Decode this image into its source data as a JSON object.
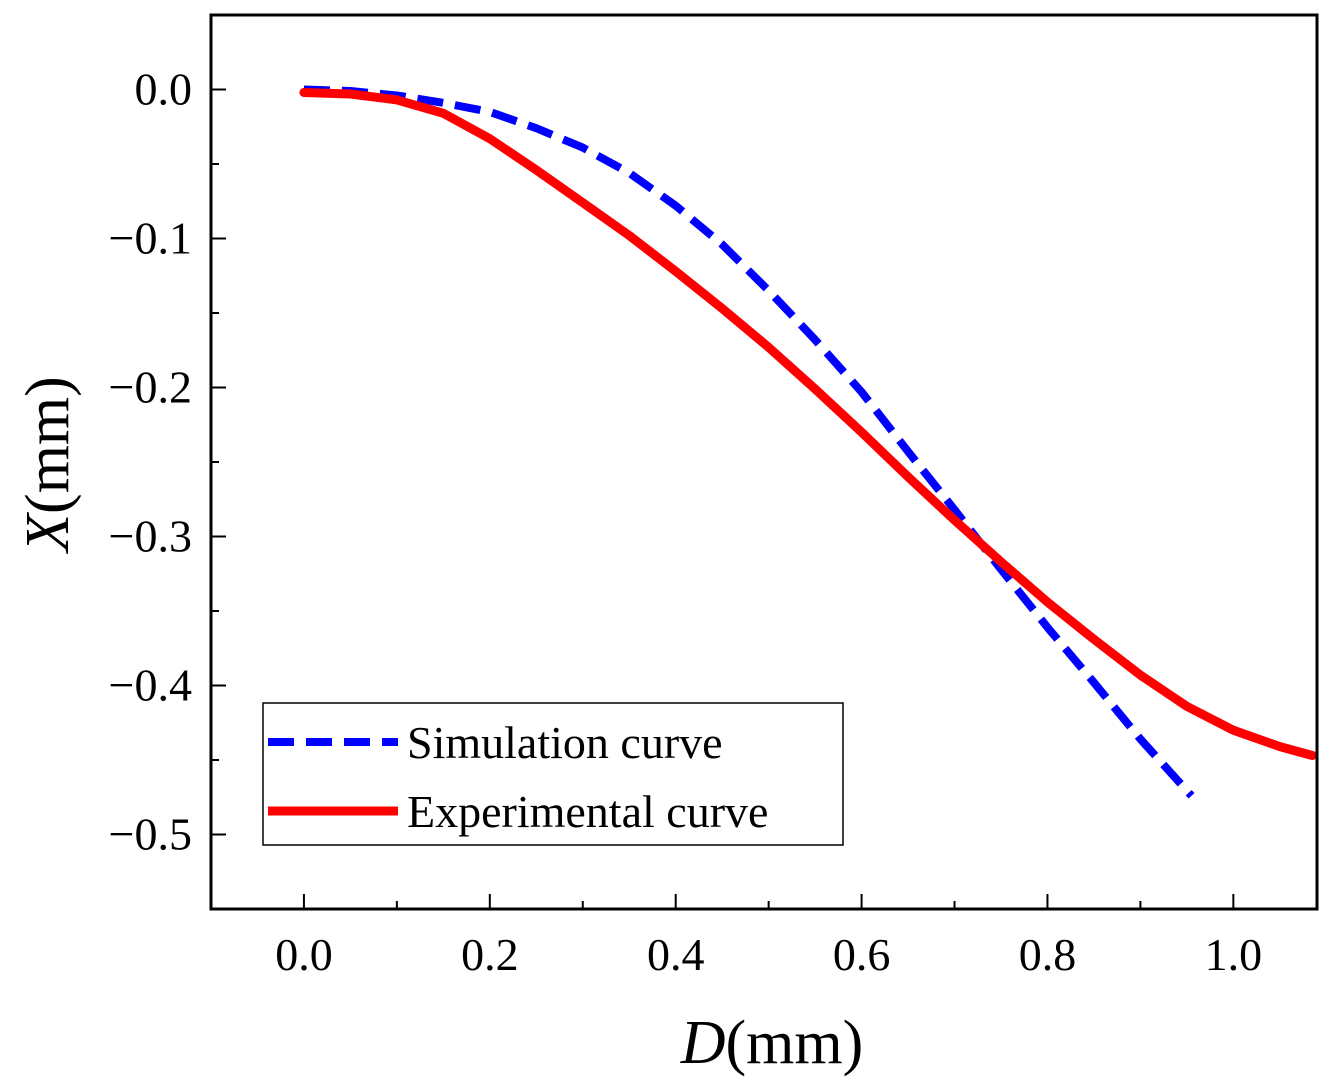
{
  "chart_data": {
    "type": "line",
    "title": "",
    "xlabel": {
      "italic": "D",
      "rest": "(mm)"
    },
    "ylabel": {
      "italic": "X",
      "rest": "(mm)"
    },
    "xlim": [
      -0.1,
      1.09
    ],
    "ylim": [
      -0.55,
      0.05
    ],
    "xticks": [
      0.0,
      0.2,
      0.4,
      0.6,
      0.8,
      1.0
    ],
    "xtick_labels": [
      "0.0",
      "0.2",
      "0.4",
      "0.6",
      "0.8",
      "1.0"
    ],
    "yticks": [
      0.0,
      -0.1,
      -0.2,
      -0.3,
      -0.4,
      -0.5
    ],
    "ytick_labels": [
      "0.0",
      "−0.1",
      "−0.2",
      "−0.3",
      "−0.4",
      "−0.5"
    ],
    "x_minor_step": 0.1,
    "y_minor_step": 0.05,
    "grid": false,
    "legend_position": "bottom-left",
    "series": [
      {
        "name": "Simulation curve",
        "color": "#0000ff",
        "style": "dashed",
        "x": [
          0.0,
          0.05,
          0.1,
          0.15,
          0.2,
          0.25,
          0.3,
          0.35,
          0.4,
          0.45,
          0.5,
          0.55,
          0.6,
          0.65,
          0.7,
          0.75,
          0.8,
          0.85,
          0.9,
          0.955
        ],
        "y": [
          0.0,
          -0.001,
          -0.004,
          -0.009,
          -0.015,
          -0.026,
          -0.039,
          -0.056,
          -0.078,
          -0.104,
          -0.135,
          -0.168,
          -0.203,
          -0.243,
          -0.282,
          -0.322,
          -0.361,
          -0.398,
          -0.436,
          -0.474
        ]
      },
      {
        "name": "Experimental curve",
        "color": "#ff0000",
        "style": "solid",
        "x": [
          0.0,
          0.05,
          0.1,
          0.15,
          0.2,
          0.25,
          0.3,
          0.35,
          0.4,
          0.45,
          0.5,
          0.55,
          0.6,
          0.65,
          0.7,
          0.75,
          0.8,
          0.85,
          0.9,
          0.95,
          1.0,
          1.05,
          1.085
        ],
        "y": [
          -0.002,
          -0.003,
          -0.007,
          -0.016,
          -0.033,
          -0.054,
          -0.076,
          -0.098,
          -0.122,
          -0.147,
          -0.173,
          -0.201,
          -0.23,
          -0.26,
          -0.289,
          -0.317,
          -0.344,
          -0.369,
          -0.393,
          -0.414,
          -0.43,
          -0.441,
          -0.447
        ]
      }
    ]
  }
}
